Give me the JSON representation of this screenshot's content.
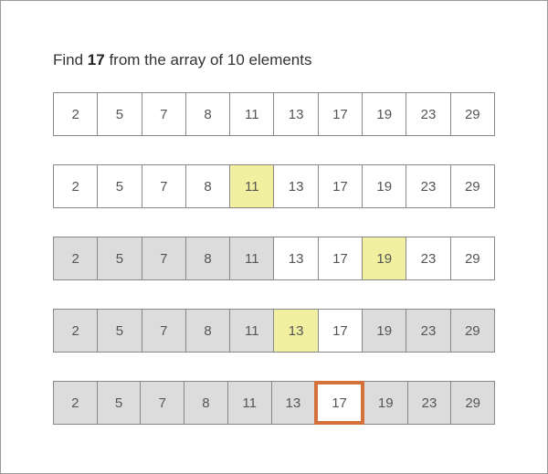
{
  "title": {
    "prefix": "Find ",
    "target": "17",
    "suffix": " from the array of 10 elements"
  },
  "colors": {
    "eliminated": "#dcdcdc",
    "midpoint": "#f0f0a0",
    "found_border": "#d4703a"
  },
  "rows": [
    {
      "values": [
        2,
        5,
        7,
        8,
        11,
        13,
        17,
        19,
        23,
        29
      ],
      "states": [
        "w",
        "w",
        "w",
        "w",
        "w",
        "w",
        "w",
        "w",
        "w",
        "w"
      ]
    },
    {
      "values": [
        2,
        5,
        7,
        8,
        11,
        13,
        17,
        19,
        23,
        29
      ],
      "states": [
        "w",
        "w",
        "w",
        "w",
        "y",
        "w",
        "w",
        "w",
        "w",
        "w"
      ]
    },
    {
      "values": [
        2,
        5,
        7,
        8,
        11,
        13,
        17,
        19,
        23,
        29
      ],
      "states": [
        "g",
        "g",
        "g",
        "g",
        "g",
        "w",
        "w",
        "y",
        "w",
        "w"
      ]
    },
    {
      "values": [
        2,
        5,
        7,
        8,
        11,
        13,
        17,
        19,
        23,
        29
      ],
      "states": [
        "g",
        "g",
        "g",
        "g",
        "g",
        "y",
        "w",
        "g",
        "g",
        "g"
      ]
    },
    {
      "values": [
        2,
        5,
        7,
        8,
        11,
        13,
        17,
        19,
        23,
        29
      ],
      "states": [
        "g",
        "g",
        "g",
        "g",
        "g",
        "g",
        "f",
        "g",
        "g",
        "g"
      ]
    }
  ]
}
